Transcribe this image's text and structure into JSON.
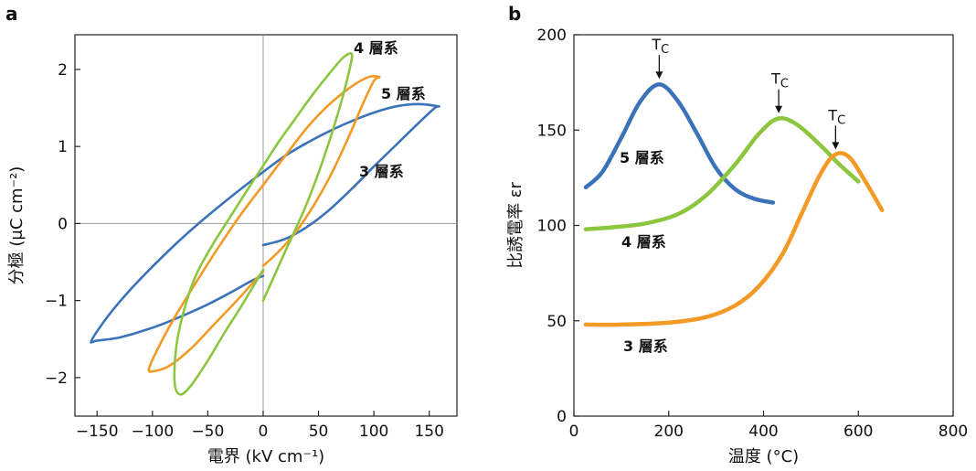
{
  "chart_data": [
    {
      "panel": "a",
      "type": "line",
      "xlabel": "電界 (kV cm⁻¹)",
      "ylabel": "分極 (μC cm⁻²)",
      "xlim": [
        -170,
        175
      ],
      "ylim": [
        -2.5,
        2.45
      ],
      "xticks": [
        -150,
        -100,
        -50,
        0,
        50,
        100,
        150
      ],
      "yticks": [
        -2,
        -1,
        0,
        1,
        2
      ],
      "tick_labels_x": [
        "−150",
        "−100",
        "−50",
        "0",
        "50",
        "100",
        "150"
      ],
      "tick_labels_y": [
        "−2",
        "−1",
        "0",
        "1",
        "2"
      ],
      "zero_lines": true,
      "series": [
        {
          "name": "3 層系",
          "color": "#3a73b9",
          "x": [
            0,
            20,
            40,
            60,
            80,
            100,
            120,
            140,
            155,
            158,
            140,
            120,
            100,
            80,
            60,
            40,
            20,
            0,
            -20,
            -40,
            -60,
            -80,
            -100,
            -120,
            -140,
            -155,
            -150,
            -130,
            -110,
            -90,
            -70,
            -50,
            -30,
            -10,
            0
          ],
          "y": [
            -0.28,
            -0.2,
            -0.04,
            0.18,
            0.45,
            0.74,
            1.02,
            1.3,
            1.5,
            1.52,
            1.55,
            1.52,
            1.44,
            1.33,
            1.2,
            1.05,
            0.88,
            0.67,
            0.45,
            0.22,
            -0.02,
            -0.28,
            -0.56,
            -0.86,
            -1.2,
            -1.52,
            -1.52,
            -1.48,
            -1.4,
            -1.3,
            -1.18,
            -1.05,
            -0.9,
            -0.74,
            -0.68
          ]
        },
        {
          "name": "4 層系",
          "color": "#8cc63f",
          "x": [
            0,
            10,
            20,
            30,
            40,
            50,
            60,
            70,
            78,
            80,
            72,
            60,
            45,
            30,
            15,
            0,
            -15,
            -30,
            -45,
            -60,
            -70,
            -78,
            -80,
            -75,
            -65,
            -50,
            -35,
            -20,
            -10,
            0
          ],
          "y": [
            -1.0,
            -0.68,
            -0.36,
            -0.05,
            0.28,
            0.66,
            1.08,
            1.55,
            2.0,
            2.2,
            2.15,
            1.95,
            1.68,
            1.38,
            1.08,
            0.75,
            0.42,
            0.08,
            -0.26,
            -0.65,
            -1.05,
            -1.55,
            -2.05,
            -2.22,
            -2.1,
            -1.78,
            -1.42,
            -1.08,
            -0.84,
            -0.6
          ]
        },
        {
          "name": "5 層系",
          "color": "#f39a26",
          "x": [
            0,
            15,
            30,
            45,
            60,
            75,
            90,
            100,
            105,
            95,
            80,
            60,
            40,
            20,
            0,
            -20,
            -40,
            -60,
            -80,
            -95,
            -103,
            -100,
            -85,
            -65,
            -45,
            -25,
            -10,
            0
          ],
          "y": [
            -0.55,
            -0.35,
            -0.1,
            0.22,
            0.6,
            1.05,
            1.55,
            1.85,
            1.9,
            1.9,
            1.78,
            1.55,
            1.25,
            0.88,
            0.5,
            0.12,
            -0.3,
            -0.75,
            -1.22,
            -1.62,
            -1.88,
            -1.92,
            -1.85,
            -1.62,
            -1.32,
            -1.02,
            -0.78,
            -0.62
          ]
        }
      ],
      "annotations": [
        "4 層系",
        "5 層系",
        "3 層系"
      ]
    },
    {
      "panel": "b",
      "type": "line",
      "xlabel": "温度 (°C)",
      "ylabel": "比誘電率 εr",
      "xlim": [
        0,
        800
      ],
      "ylim": [
        0,
        200
      ],
      "xticks": [
        0,
        200,
        400,
        600,
        800
      ],
      "yticks": [
        0,
        50,
        100,
        150,
        200
      ],
      "tick_labels_x": [
        "0",
        "200",
        "400",
        "600",
        "800"
      ],
      "tick_labels_y": [
        "0",
        "50",
        "100",
        "150",
        "200"
      ],
      "series": [
        {
          "name": "5 層系",
          "color": "#3a73b9",
          "x": [
            25,
            60,
            100,
            140,
            180,
            220,
            260,
            300,
            340,
            380,
            420
          ],
          "y": [
            120,
            128,
            146,
            165,
            174,
            165,
            148,
            130,
            119,
            114,
            112
          ]
        },
        {
          "name": "4 層系",
          "color": "#8cc63f",
          "x": [
            25,
            80,
            150,
            220,
            280,
            340,
            390,
            430,
            470,
            520,
            560,
            600
          ],
          "y": [
            98,
            99,
            101,
            106,
            116,
            132,
            148,
            156,
            153,
            142,
            132,
            123
          ]
        },
        {
          "name": "3 層系",
          "color": "#f39a26",
          "x": [
            25,
            100,
            200,
            280,
            340,
            390,
            440,
            480,
            520,
            550,
            580,
            615,
            650
          ],
          "y": [
            48,
            48,
            49,
            52,
            58,
            68,
            85,
            106,
            127,
            137,
            136,
            123,
            108
          ]
        }
      ],
      "annotations": [
        "Tc",
        "Tc",
        "Tc",
        "5 層系",
        "4 層系",
        "3 層系"
      ],
      "tc_markers": [
        {
          "label_main": "T",
          "label_sub": "C",
          "x": 180,
          "y": 174
        },
        {
          "label_main": "T",
          "label_sub": "C",
          "x": 432,
          "y": 156
        },
        {
          "label_main": "T",
          "label_sub": "C",
          "x": 552,
          "y": 137
        }
      ]
    }
  ],
  "panel_letters": [
    "a",
    "b"
  ]
}
